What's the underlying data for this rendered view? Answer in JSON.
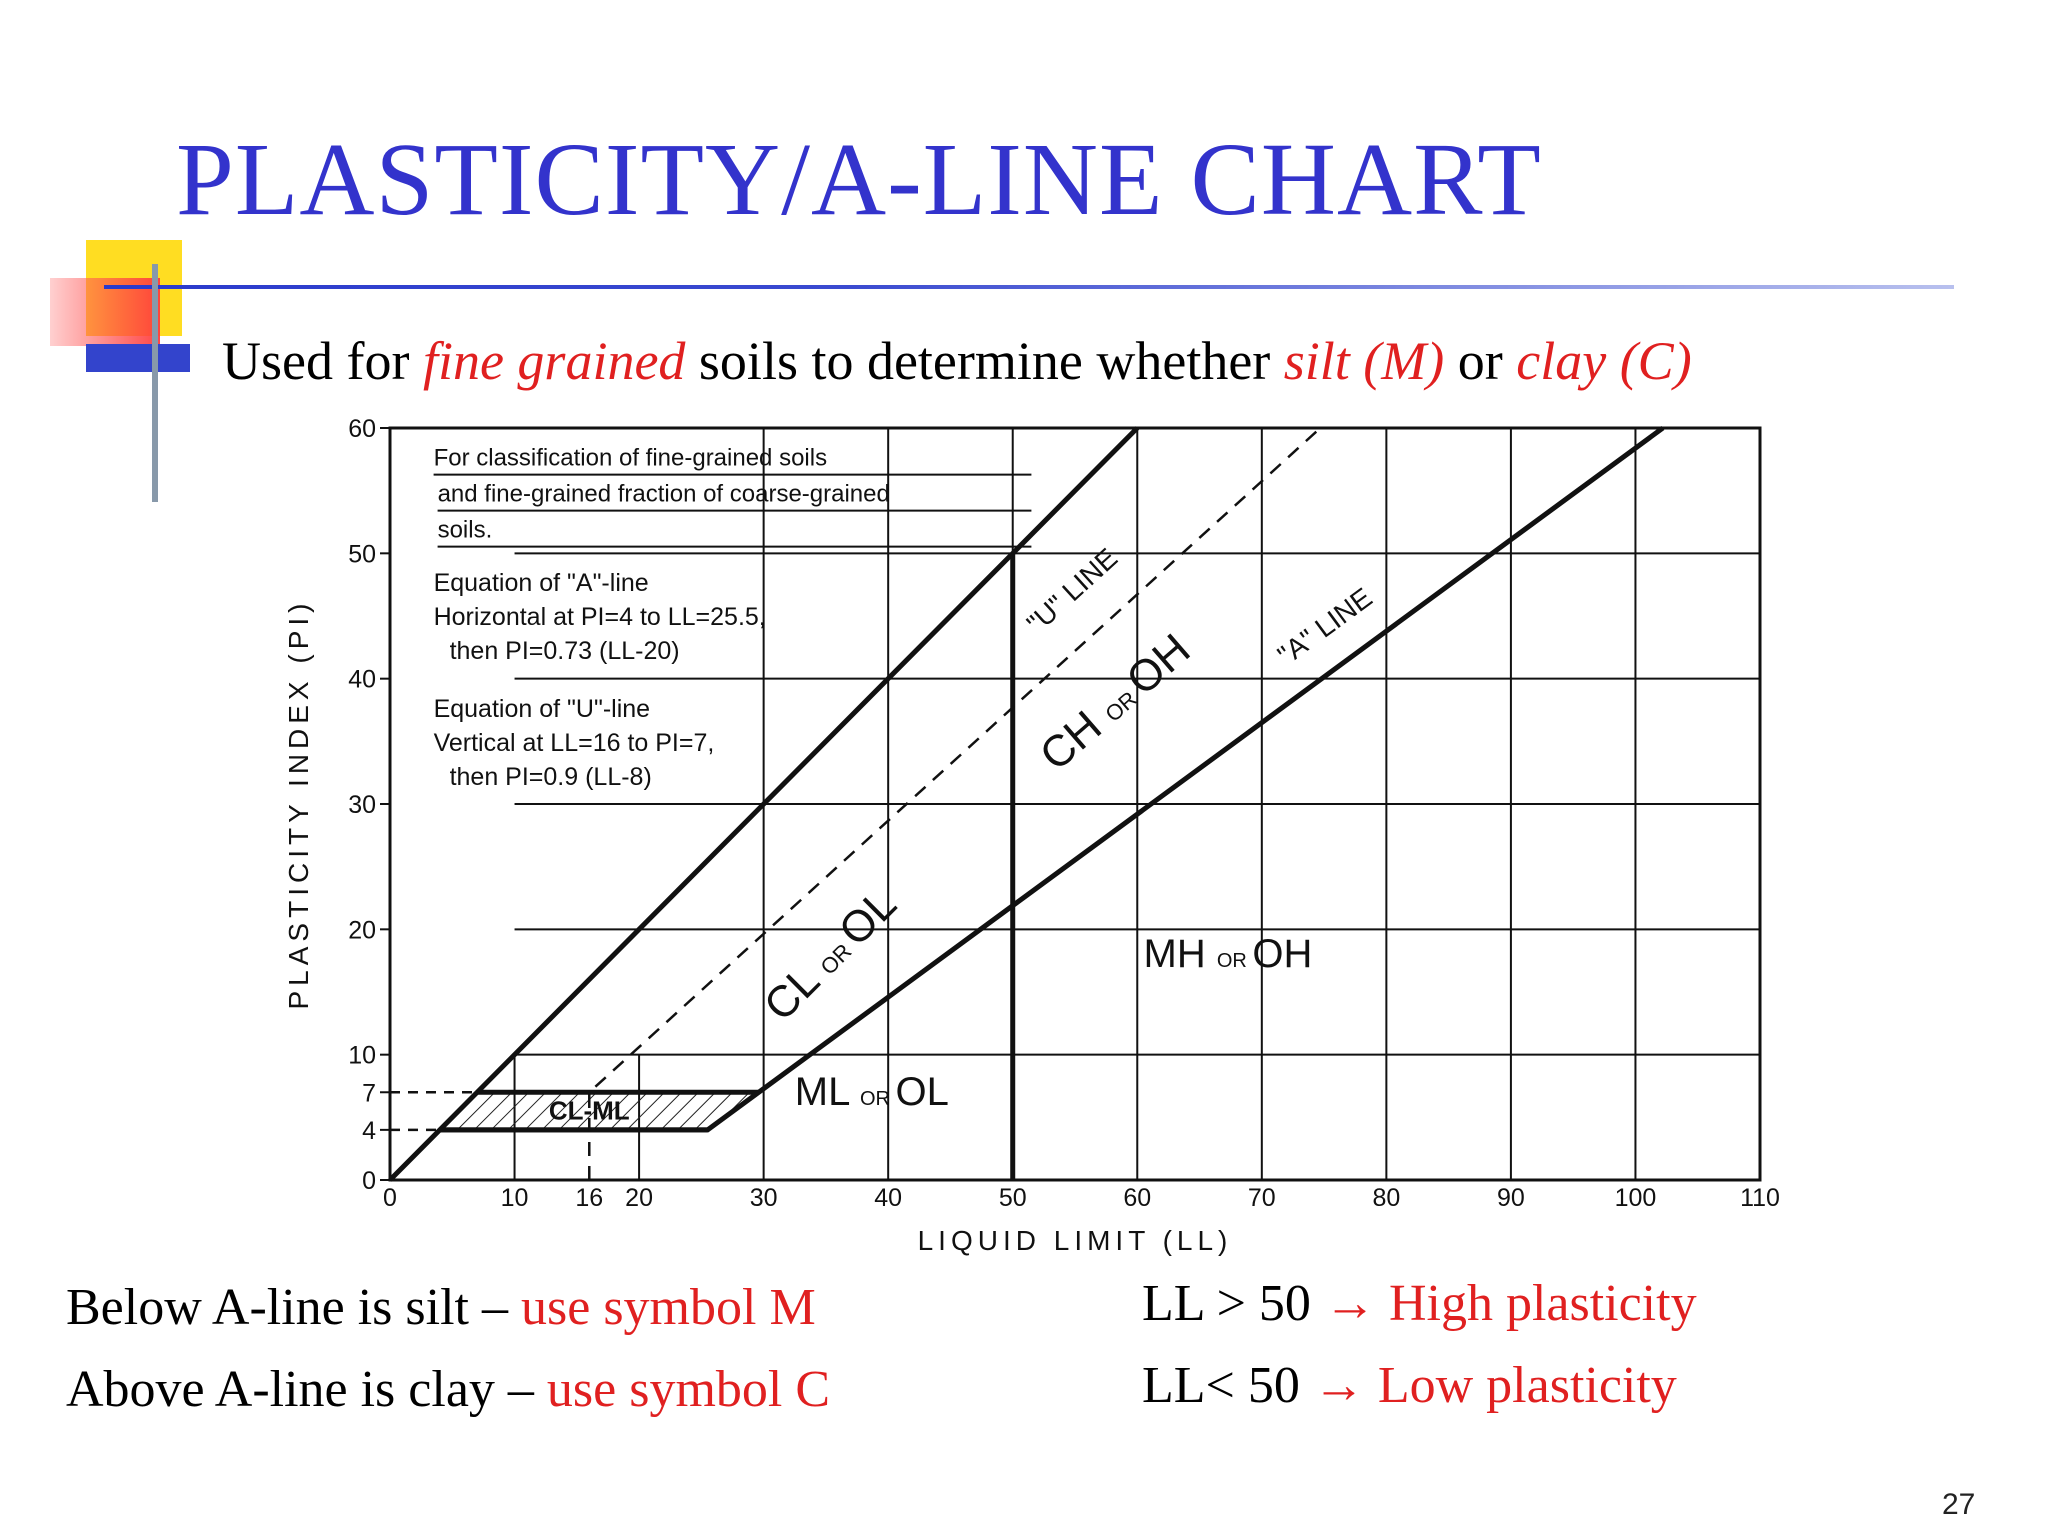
{
  "title": "PLASTICITY/A-LINE CHART",
  "subtitle": {
    "part1": "Used for ",
    "fine": "fine grained",
    "part2": " soils to determine whether ",
    "silt": "silt (M)",
    "part3": " or ",
    "clay": "clay (C)"
  },
  "notes": {
    "below": {
      "text": "Below A-line is silt – ",
      "highlight": "use symbol  M"
    },
    "above": {
      "text": "Above A-line is clay – ",
      "highlight": "use symbol C"
    },
    "high": {
      "text": "LL > 50 ",
      "arrow": "→",
      "highlight": "High plasticity"
    },
    "low": {
      "text": "LL< 50 ",
      "arrow": "→",
      "highlight": "Low plasticity"
    }
  },
  "page_number": "27",
  "colors": {
    "title": "#3333cc",
    "highlight": "#e02020",
    "accent_blue": "#3344cc",
    "accent_yellow": "#ffdd22"
  },
  "chart_data": {
    "type": "line",
    "xlabel": "LIQUID LIMIT (LL)",
    "ylabel": "PLASTICITY INDEX (PI)",
    "xlim": [
      0,
      110
    ],
    "ylim": [
      0,
      60
    ],
    "x_ticks": [
      "0",
      "10",
      "16",
      "20",
      "30",
      "40",
      "50",
      "60",
      "70",
      "80",
      "90",
      "100",
      "110"
    ],
    "y_ticks": [
      "0",
      "4",
      "7",
      "10",
      "20",
      "30",
      "40",
      "50",
      "60"
    ],
    "grid": true,
    "box_text": [
      "For classification of fine-grained soils",
      "and fine-grained fraction of coarse-grained",
      "soils."
    ],
    "equations": [
      "Equation of \"A\"-line",
      "Horizontal at PI=4 to LL=25.5,",
      "then PI=0.73 (LL-20)",
      "Equation of \"U\"-line",
      "Vertical at LL=16 to PI=7,",
      "then PI=0.9 (LL-8)"
    ],
    "series": [
      {
        "name": "\"A\" LINE",
        "points": [
          [
            4,
            4
          ],
          [
            25.5,
            4
          ],
          [
            102.2,
            60
          ]
        ]
      },
      {
        "name": "\"U\" LINE",
        "points": [
          [
            16,
            0
          ],
          [
            16,
            7
          ],
          [
            74.7,
            60
          ]
        ]
      }
    ],
    "boundaries": [
      {
        "points": [
          [
            0,
            0
          ],
          [
            50,
            50
          ],
          [
            60,
            60
          ]
        ]
      },
      {
        "points": [
          [
            50,
            0
          ],
          [
            50,
            50
          ]
        ]
      },
      {
        "points": [
          [
            7,
            7
          ],
          [
            29.6,
            7
          ]
        ]
      },
      {
        "points": [
          [
            4,
            4
          ],
          [
            25.5,
            4
          ]
        ]
      }
    ],
    "zones": {
      "cl_ol": {
        "a": "CL",
        "b": "OR",
        "c": "OL"
      },
      "ch_oh": {
        "a": "CH",
        "b": "OR",
        "c": "OH"
      },
      "ml_ol": {
        "a": "ML",
        "b": "OR",
        "c": "OL"
      },
      "mh_oh": {
        "a": "MH",
        "b": "OR",
        "c": "OH"
      },
      "cl_ml": "CL-ML"
    }
  }
}
